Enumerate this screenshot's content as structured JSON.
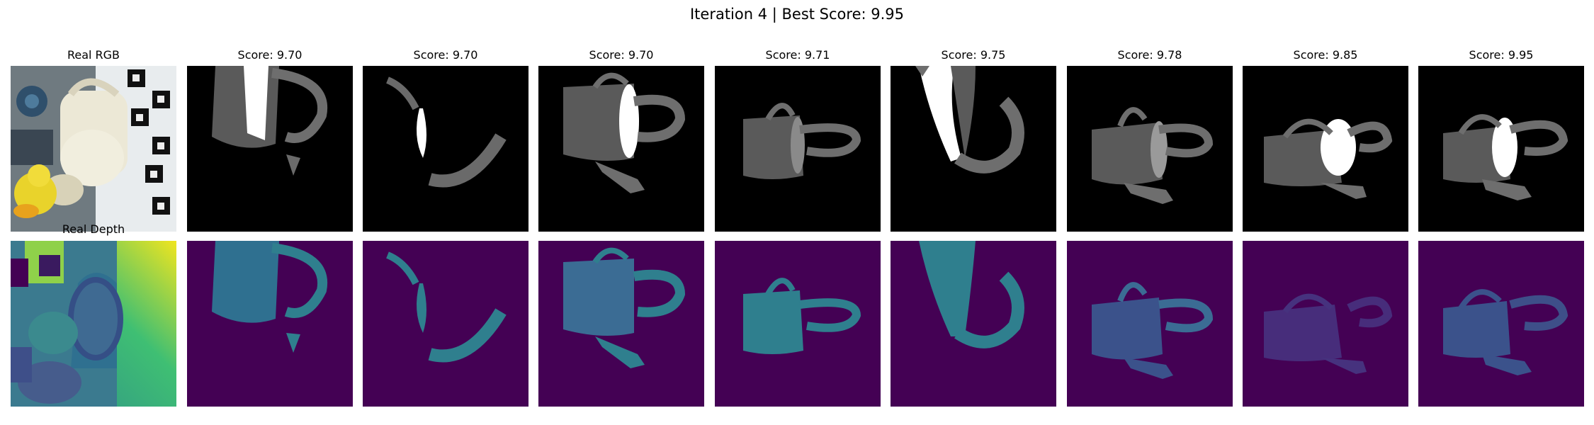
{
  "figure": {
    "title": "Iteration 4 | Best Score: 9.95"
  },
  "reference": {
    "rgb_label": "Real RGB",
    "depth_label": "Real Depth"
  },
  "candidates": [
    {
      "score_label": "Score: 9.70"
    },
    {
      "score_label": "Score: 9.70"
    },
    {
      "score_label": "Score: 9.70"
    },
    {
      "score_label": "Score: 9.71"
    },
    {
      "score_label": "Score: 9.75"
    },
    {
      "score_label": "Score: 9.78"
    },
    {
      "score_label": "Score: 9.85"
    },
    {
      "score_label": "Score: 9.95"
    }
  ],
  "colors": {
    "render_background": "#000000",
    "render_body": "#5a5a5a",
    "render_highlight": "#ffffff",
    "depth_background": "#440154",
    "depth_object": "#2f7f8e",
    "depth_object_far": "#3b528b"
  }
}
